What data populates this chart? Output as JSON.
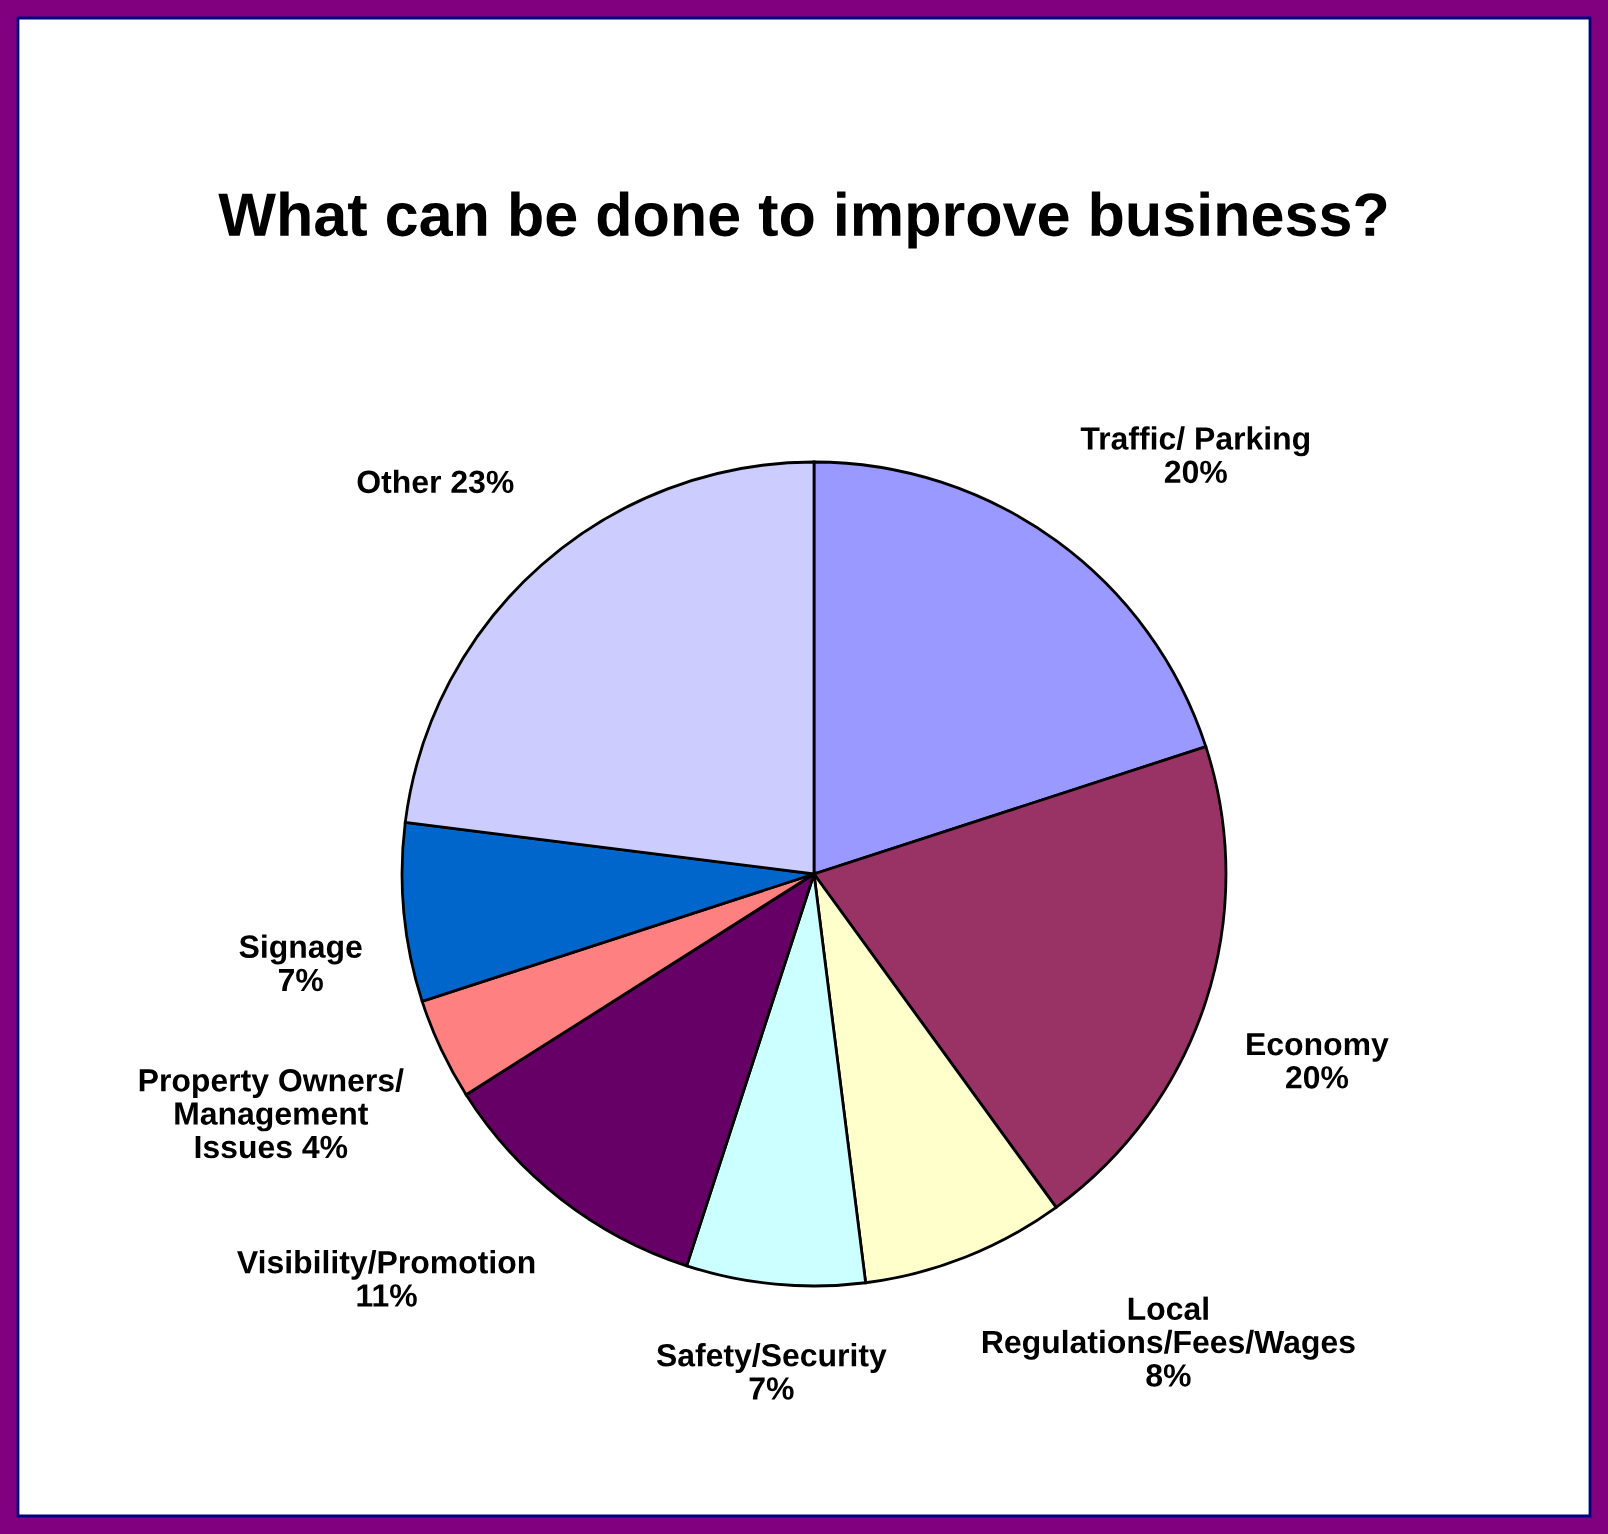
{
  "chart_data": {
    "type": "pie",
    "title": "What can be done to improve business?",
    "categories": [
      "Traffic/ Parking\n",
      "Economy\n",
      "Local\nRegulations/Fees/Wages\n",
      "Safety/Security\n",
      "Visibility/Promotion\n",
      "Property Owners/\nManagement\nIssues ",
      "Signage\n",
      "Other "
    ],
    "values": [
      20,
      20,
      8,
      7,
      11,
      4,
      7,
      23
    ],
    "colors": [
      "#9999ff",
      "#993366",
      "#ffffcc",
      "#ccffff",
      "#660066",
      "#ff8080",
      "#0066cc",
      "#ccccff"
    ],
    "value_labels": [
      "20%",
      "20%",
      "8%",
      "7%",
      "11%",
      "4%",
      "7%",
      "23%"
    ],
    "legend": false
  }
}
